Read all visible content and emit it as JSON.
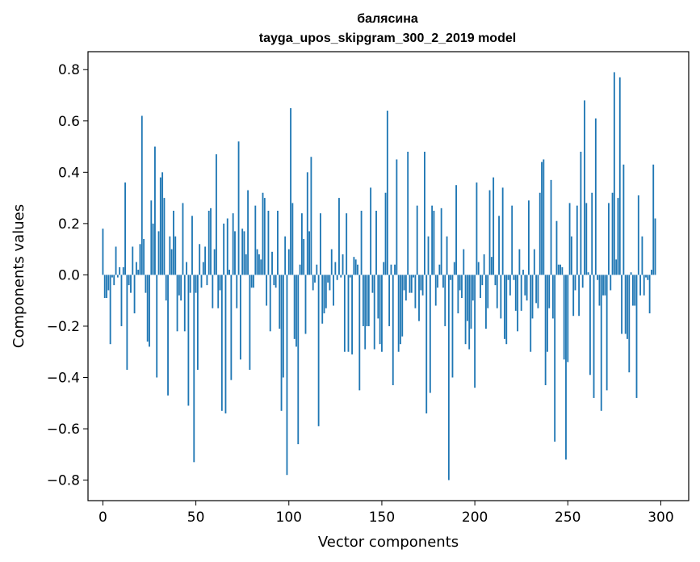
{
  "chart_data": {
    "type": "bar",
    "title": "балясина",
    "subtitle": "tayga_upos_skipgram_300_2_2019 model",
    "xlabel": "Vector components",
    "ylabel": "Components values",
    "xlim": [
      -8,
      315
    ],
    "ylim": [
      -0.88,
      0.87
    ],
    "xticks": [
      0,
      50,
      100,
      150,
      200,
      250,
      300
    ],
    "yticks": [
      -0.8,
      -0.6,
      -0.4,
      -0.2,
      0.0,
      0.2,
      0.4,
      0.6,
      0.8
    ],
    "grid": false,
    "color": "#1f77b4",
    "values": [
      0.18,
      -0.09,
      -0.09,
      -0.06,
      -0.27,
      -0.01,
      -0.04,
      0.11,
      -0.01,
      0.03,
      -0.2,
      0.03,
      0.36,
      -0.37,
      -0.04,
      -0.07,
      0.11,
      -0.15,
      0.05,
      0.02,
      0.12,
      0.62,
      0.14,
      -0.07,
      -0.26,
      -0.28,
      0.29,
      0.2,
      0.5,
      -0.4,
      0.17,
      0.38,
      0.4,
      0.3,
      -0.1,
      -0.47,
      0.15,
      0.1,
      0.25,
      0.15,
      -0.22,
      -0.08,
      -0.1,
      0.28,
      -0.22,
      0.05,
      -0.51,
      -0.07,
      0.23,
      -0.73,
      -0.07,
      -0.37,
      0.12,
      -0.05,
      0.05,
      0.11,
      -0.04,
      0.25,
      0.26,
      -0.13,
      0.1,
      0.47,
      -0.13,
      -0.06,
      -0.53,
      0.2,
      -0.54,
      0.22,
      0.02,
      -0.41,
      0.24,
      0.17,
      -0.13,
      0.52,
      -0.33,
      0.18,
      0.17,
      0.08,
      0.33,
      -0.37,
      -0.05,
      -0.05,
      0.27,
      0.1,
      0.08,
      0.06,
      0.32,
      0.3,
      -0.12,
      0.25,
      -0.22,
      0.09,
      -0.04,
      -0.05,
      0.25,
      -0.21,
      -0.53,
      -0.4,
      0.15,
      -0.78,
      0.1,
      0.65,
      0.28,
      -0.25,
      -0.28,
      -0.66,
      0.04,
      0.24,
      0.14,
      -0.23,
      0.4,
      0.17,
      0.46,
      -0.06,
      -0.03,
      0.04,
      -0.59,
      0.24,
      -0.19,
      -0.15,
      -0.13,
      -0.03,
      -0.06,
      0.1,
      -0.12,
      0.05,
      -0.02,
      0.3,
      -0.01,
      0.08,
      -0.3,
      0.24,
      -0.3,
      -0.01,
      -0.31,
      0.07,
      0.06,
      0.04,
      -0.45,
      0.25,
      -0.2,
      -0.29,
      -0.2,
      -0.2,
      0.34,
      -0.07,
      -0.29,
      0.25,
      -0.17,
      -0.27,
      -0.3,
      0.05,
      0.32,
      0.64,
      -0.2,
      0.04,
      -0.43,
      0.04,
      0.45,
      -0.3,
      -0.27,
      -0.24,
      -0.06,
      -0.1,
      0.48,
      -0.07,
      -0.07,
      -0.01,
      -0.13,
      0.27,
      -0.18,
      -0.06,
      -0.08,
      0.48,
      -0.54,
      0.15,
      -0.46,
      0.27,
      0.25,
      -0.12,
      -0.05,
      0.04,
      0.26,
      -0.05,
      -0.2,
      0.15,
      -0.8,
      -0.02,
      -0.4,
      0.05,
      0.35,
      -0.15,
      -0.06,
      -0.09,
      0.1,
      -0.27,
      -0.18,
      -0.29,
      -0.21,
      -0.1,
      -0.44,
      0.36,
      0.05,
      -0.09,
      -0.04,
      0.08,
      -0.21,
      -0.13,
      0.33,
      0.07,
      0.38,
      -0.04,
      -0.13,
      0.23,
      -0.17,
      0.34,
      -0.25,
      -0.27,
      -0.02,
      -0.08,
      0.27,
      -0.02,
      -0.14,
      -0.22,
      0.1,
      -0.14,
      0.02,
      -0.08,
      -0.1,
      0.29,
      -0.3,
      -0.17,
      0.1,
      -0.11,
      -0.13,
      0.32,
      0.44,
      0.45,
      -0.43,
      -0.3,
      -0.13,
      0.37,
      -0.17,
      -0.65,
      0.21,
      0.04,
      0.04,
      0.03,
      -0.33,
      -0.72,
      -0.34,
      0.28,
      0.15,
      -0.16,
      -0.06,
      0.27,
      -0.16,
      0.48,
      -0.05,
      0.68,
      0.28,
      0.01,
      -0.39,
      0.32,
      -0.48,
      0.61,
      -0.02,
      -0.12,
      -0.53,
      -0.08,
      -0.08,
      -0.45,
      0.28,
      -0.06,
      0.32,
      0.79,
      0.06,
      0.3,
      0.77,
      -0.23,
      0.43,
      -0.23,
      -0.25,
      -0.38,
      0.01,
      -0.12,
      -0.12,
      -0.48,
      0.31,
      -0.08,
      0.15,
      -0.08,
      -0.01,
      -0.02,
      -0.15,
      0.02,
      0.43,
      0.22
    ]
  }
}
